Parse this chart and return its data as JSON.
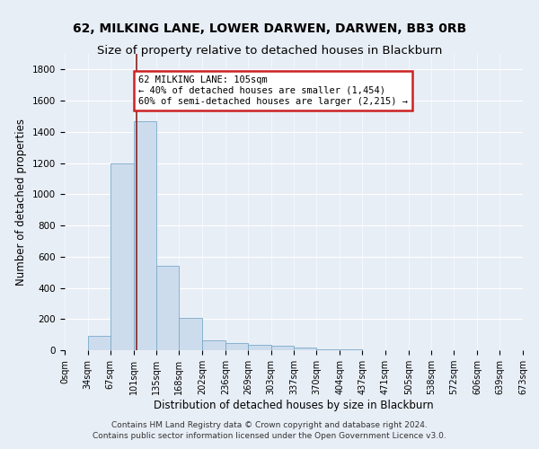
{
  "title": "62, MILKING LANE, LOWER DARWEN, DARWEN, BB3 0RB",
  "subtitle": "Size of property relative to detached houses in Blackburn",
  "xlabel": "Distribution of detached houses by size in Blackburn",
  "ylabel": "Number of detached properties",
  "bar_color": "#cddcec",
  "bar_edge_color": "#7aaaca",
  "background_color": "#e8eef6",
  "bin_edges": [
    0,
    34,
    67,
    101,
    135,
    168,
    202,
    236,
    269,
    303,
    337,
    370,
    404,
    437,
    471,
    505,
    538,
    572,
    606,
    639,
    673
  ],
  "bar_heights": [
    0,
    90,
    1200,
    1470,
    540,
    205,
    65,
    45,
    35,
    28,
    15,
    8,
    4,
    2,
    1,
    1,
    0,
    0,
    0,
    0
  ],
  "property_size": 105,
  "annotation_text_line1": "62 MILKING LANE: 105sqm",
  "annotation_text_line2": "← 40% of detached houses are smaller (1,454)",
  "annotation_text_line3": "60% of semi-detached houses are larger (2,215) →",
  "annotation_box_color": "#ffffff",
  "annotation_box_edge_color": "#cc2222",
  "vline_color": "#882222",
  "ylim": [
    0,
    1900
  ],
  "xlim": [
    0,
    673
  ],
  "yticks": [
    0,
    200,
    400,
    600,
    800,
    1000,
    1200,
    1400,
    1600,
    1800
  ],
  "tick_labels": [
    "0sqm",
    "34sqm",
    "67sqm",
    "101sqm",
    "135sqm",
    "168sqm",
    "202sqm",
    "236sqm",
    "269sqm",
    "303sqm",
    "337sqm",
    "370sqm",
    "404sqm",
    "437sqm",
    "471sqm",
    "505sqm",
    "538sqm",
    "572sqm",
    "606sqm",
    "639sqm",
    "673sqm"
  ],
  "footer_line1": "Contains HM Land Registry data © Crown copyright and database right 2024.",
  "footer_line2": "Contains public sector information licensed under the Open Government Licence v3.0.",
  "grid_color": "#ffffff",
  "title_fontsize": 10,
  "subtitle_fontsize": 9.5,
  "axis_label_fontsize": 8.5,
  "tick_fontsize": 7,
  "footer_fontsize": 6.5,
  "annotation_fontsize": 7.5
}
